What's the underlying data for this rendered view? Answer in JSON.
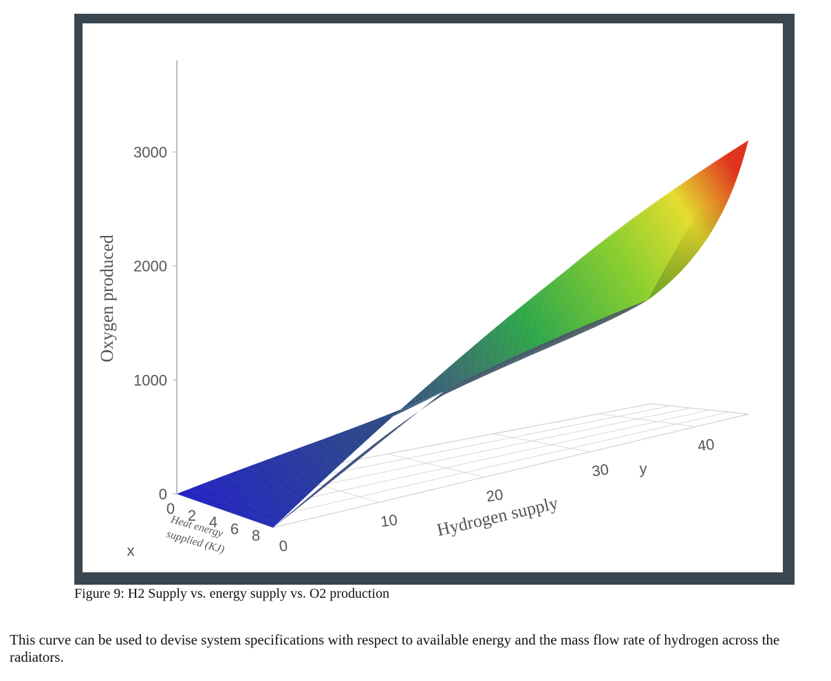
{
  "chart_data": {
    "type": "surface3d",
    "z_axis": {
      "label": "Oxygen produced",
      "range": [
        0,
        3700
      ],
      "ticks": [
        0,
        1000,
        2000,
        3000
      ],
      "tick_labels": [
        "0",
        "1000",
        "2000",
        "3000"
      ]
    },
    "x_axis": {
      "label": "x",
      "title": "Heat energy supplied (KJ)",
      "range": [
        0,
        9
      ],
      "ticks": [
        0,
        2,
        4,
        6,
        8
      ],
      "tick_labels": [
        "0",
        "2",
        "4",
        "6",
        "8"
      ]
    },
    "y_axis": {
      "label": "y",
      "title": "Hydrogen supply",
      "range": [
        0,
        45
      ],
      "ticks": [
        0,
        10,
        20,
        30,
        40
      ],
      "tick_labels": [
        "0",
        "10",
        "20",
        "30",
        "40"
      ]
    },
    "surface": {
      "colorscale": [
        "#1a1fc8",
        "#2e4a8a",
        "#3f6f78",
        "#2fa848",
        "#8cd22f",
        "#e6e22f",
        "#e8732a",
        "#e0301e"
      ],
      "corner_points": [
        {
          "x": 0,
          "y": 0,
          "z": 0
        },
        {
          "x": 9,
          "y": 0,
          "z": 0
        },
        {
          "x": 0,
          "y": 45,
          "z": 3050
        },
        {
          "x": 9,
          "y": 45,
          "z": 3050
        },
        {
          "x": 0,
          "y": 36,
          "z": 1700
        }
      ]
    }
  },
  "caption": "Figure 9: H2 Supply vs. energy supply vs. O2 production",
  "body_text": "This curve can be used to devise system specifications with respect to available energy and the mass flow rate of hydrogen across the radiators."
}
